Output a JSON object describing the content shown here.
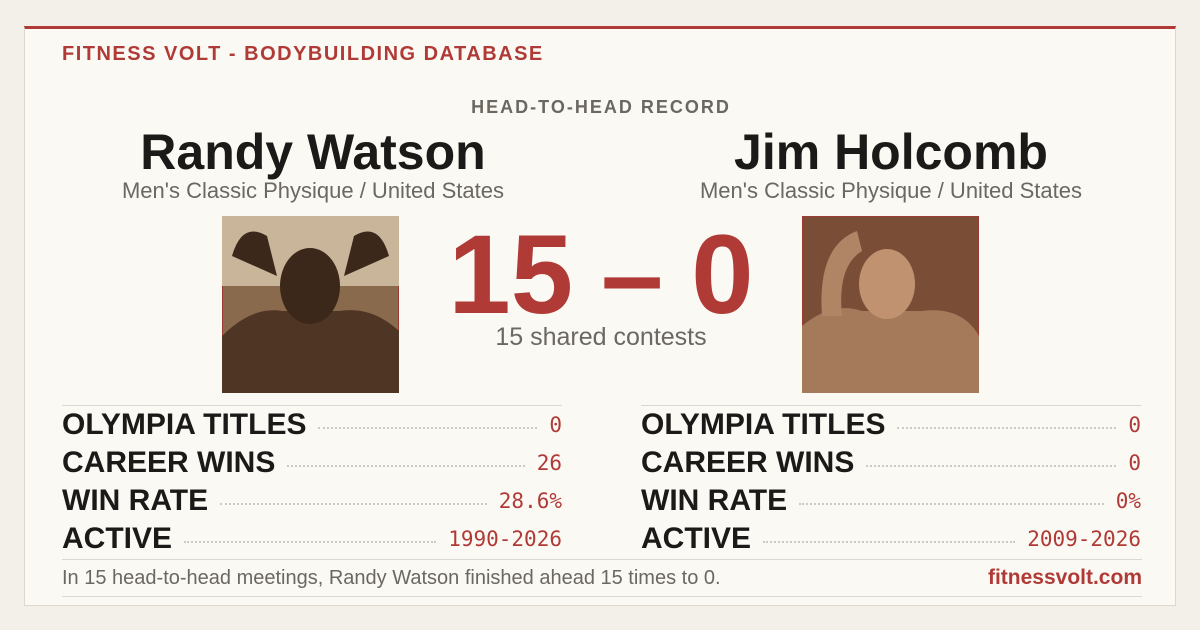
{
  "header": {
    "brand": "FITNESS VOLT - BODYBUILDING DATABASE",
    "subtitle": "HEAD-TO-HEAD RECORD"
  },
  "athletes": [
    {
      "name": "Randy Watson",
      "division": "Men's Classic Physique / United States",
      "stats": [
        {
          "label": "OLYMPIA TITLES",
          "value": "0"
        },
        {
          "label": "CAREER WINS",
          "value": "26"
        },
        {
          "label": "WIN RATE",
          "value": "28.6%"
        },
        {
          "label": "ACTIVE",
          "value": "1990-2026"
        }
      ]
    },
    {
      "name": "Jim Holcomb",
      "division": "Men's Classic Physique / United States",
      "stats": [
        {
          "label": "OLYMPIA TITLES",
          "value": "0"
        },
        {
          "label": "CAREER WINS",
          "value": "0"
        },
        {
          "label": "WIN RATE",
          "value": "0%"
        },
        {
          "label": "ACTIVE",
          "value": "2009-2026"
        }
      ]
    }
  ],
  "score": {
    "left": "15",
    "separator": "–",
    "right": "0",
    "caption": "15 shared contests"
  },
  "footer": {
    "summary": "In 15 head-to-head meetings, Randy Watson finished ahead 15 times to 0.",
    "site": "fitnessvolt.com"
  }
}
